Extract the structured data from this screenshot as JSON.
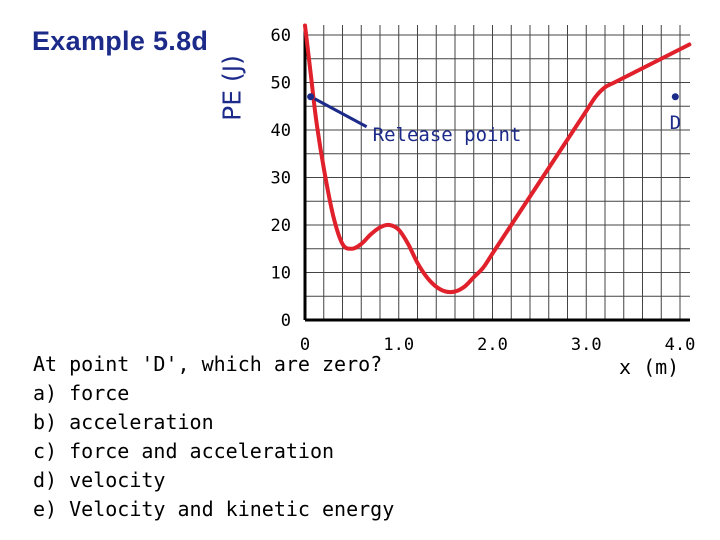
{
  "title": "Example 5.8d",
  "chart_data": {
    "type": "line",
    "xlabel": "x (m)",
    "ylabel": "PE (J)",
    "xlim": [
      0,
      4.0
    ],
    "ylim": [
      0,
      60
    ],
    "x_ticks": [
      "0",
      "1.0",
      "2.0",
      "3.0",
      "4.0"
    ],
    "y_ticks": [
      "60",
      "50",
      "40",
      "30",
      "20",
      "10",
      "0"
    ],
    "grid": true,
    "line_color": "#e0202a",
    "series": [
      {
        "x": [
          0.0,
          0.06,
          0.12,
          0.2,
          0.3,
          0.4,
          0.5,
          0.6,
          0.7,
          0.8,
          0.9,
          1.0,
          1.1,
          1.2,
          1.3,
          1.4,
          1.5,
          1.6,
          1.7,
          1.8,
          1.9,
          2.0,
          2.1,
          2.2,
          2.3,
          2.4,
          2.5,
          2.6,
          2.7,
          2.8,
          2.9,
          3.0,
          3.1,
          3.2,
          3.3,
          3.4,
          3.5,
          3.6,
          3.7,
          3.8,
          3.9,
          4.0,
          4.1
        ],
        "y": [
          62,
          52,
          42,
          32,
          22,
          16,
          15,
          16,
          18,
          19.5,
          20,
          19,
          16,
          12,
          9,
          7,
          6,
          6,
          7,
          9,
          11,
          14,
          17,
          20,
          23,
          26,
          29,
          32,
          35,
          38,
          41,
          44,
          47,
          49,
          50,
          51,
          52,
          53,
          54,
          55,
          56,
          57,
          58
        ]
      }
    ],
    "points": [
      {
        "x": 0.06,
        "y": 47,
        "label": ""
      },
      {
        "x": 3.95,
        "y": 47,
        "label": "D"
      }
    ],
    "annotations": [
      {
        "text": "Release point",
        "arrow_to_x": 0.06,
        "arrow_to_y": 47
      }
    ]
  },
  "question": {
    "prompt": "At point 'D', which are zero?",
    "options": [
      "a) force",
      "b) acceleration",
      "c) force and acceleration",
      "d) velocity",
      "e) Velocity and kinetic energy"
    ]
  }
}
